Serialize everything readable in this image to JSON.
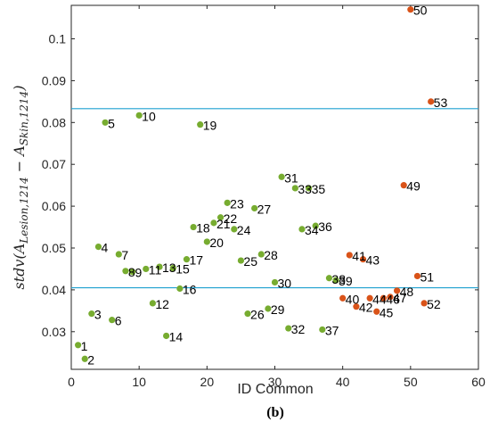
{
  "chart_data": {
    "type": "scatter",
    "title": "",
    "xlabel": "ID Common",
    "ylabel": {
      "prefix": "stdv(",
      "a1": "A",
      "s1": "Lesion,1214",
      "minus": " − ",
      "a2": "A",
      "s2": "Skin,1214",
      "suffix": ")"
    },
    "caption": "(b)",
    "xlim": [
      0,
      60
    ],
    "ylim": [
      0.021,
      0.108
    ],
    "xticks": [
      "0",
      "10",
      "20",
      "30",
      "40",
      "50",
      "60"
    ],
    "yticks": [
      "0.03",
      "0.04",
      "0.05",
      "0.06",
      "0.07",
      "0.08",
      "0.09",
      "0.1"
    ],
    "xtick_values": [
      0,
      10,
      20,
      30,
      40,
      50,
      60
    ],
    "ytick_values": [
      0.03,
      0.04,
      0.05,
      0.06,
      0.07,
      0.08,
      0.09,
      0.1
    ],
    "grid": false,
    "reference_lines": [
      {
        "y": 0.0833,
        "color": "#1fa0d0"
      },
      {
        "y": 0.0405,
        "color": "#1fa0d0"
      }
    ],
    "colors": {
      "green": "#77ac30",
      "orange": "#d95319"
    },
    "points": [
      {
        "label": "1",
        "x": 1,
        "y": 0.0268,
        "color": "green"
      },
      {
        "label": "2",
        "x": 2,
        "y": 0.0235,
        "color": "green"
      },
      {
        "label": "3",
        "x": 3,
        "y": 0.0343,
        "color": "green"
      },
      {
        "label": "4",
        "x": 4,
        "y": 0.0503,
        "color": "green"
      },
      {
        "label": "5",
        "x": 5,
        "y": 0.08,
        "color": "green"
      },
      {
        "label": "6",
        "x": 6,
        "y": 0.0328,
        "color": "green"
      },
      {
        "label": "7",
        "x": 7,
        "y": 0.0485,
        "color": "green"
      },
      {
        "label": "8",
        "x": 8,
        "y": 0.0445,
        "color": "green"
      },
      {
        "label": "9",
        "x": 9,
        "y": 0.0443,
        "color": "green"
      },
      {
        "label": "10",
        "x": 10,
        "y": 0.0817,
        "color": "green"
      },
      {
        "label": "11",
        "x": 11,
        "y": 0.045,
        "color": "green"
      },
      {
        "label": "12",
        "x": 12,
        "y": 0.0368,
        "color": "green"
      },
      {
        "label": "13",
        "x": 13,
        "y": 0.0455,
        "color": "green"
      },
      {
        "label": "14",
        "x": 14,
        "y": 0.029,
        "color": "green"
      },
      {
        "label": "15",
        "x": 15,
        "y": 0.0452,
        "color": "green"
      },
      {
        "label": "16",
        "x": 16,
        "y": 0.0403,
        "color": "green"
      },
      {
        "label": "17",
        "x": 17,
        "y": 0.0473,
        "color": "green"
      },
      {
        "label": "18",
        "x": 18,
        "y": 0.055,
        "color": "green"
      },
      {
        "label": "19",
        "x": 19,
        "y": 0.0795,
        "color": "green"
      },
      {
        "label": "20",
        "x": 20,
        "y": 0.0515,
        "color": "green"
      },
      {
        "label": "21",
        "x": 21,
        "y": 0.056,
        "color": "green"
      },
      {
        "label": "22",
        "x": 22,
        "y": 0.0573,
        "color": "green"
      },
      {
        "label": "23",
        "x": 23,
        "y": 0.0608,
        "color": "green"
      },
      {
        "label": "24",
        "x": 24,
        "y": 0.0545,
        "color": "green"
      },
      {
        "label": "25",
        "x": 25,
        "y": 0.047,
        "color": "green"
      },
      {
        "label": "26",
        "x": 26,
        "y": 0.0343,
        "color": "green"
      },
      {
        "label": "27",
        "x": 27,
        "y": 0.0595,
        "color": "green"
      },
      {
        "label": "28",
        "x": 28,
        "y": 0.0485,
        "color": "green"
      },
      {
        "label": "29",
        "x": 29,
        "y": 0.0355,
        "color": "green"
      },
      {
        "label": "30",
        "x": 30,
        "y": 0.0418,
        "color": "green"
      },
      {
        "label": "31",
        "x": 31,
        "y": 0.067,
        "color": "green"
      },
      {
        "label": "32",
        "x": 32,
        "y": 0.0308,
        "color": "green"
      },
      {
        "label": "33",
        "x": 33,
        "y": 0.0643,
        "color": "green"
      },
      {
        "label": "34",
        "x": 34,
        "y": 0.0545,
        "color": "green"
      },
      {
        "label": "35",
        "x": 35,
        "y": 0.0643,
        "color": "green"
      },
      {
        "label": "36",
        "x": 36,
        "y": 0.0553,
        "color": "green"
      },
      {
        "label": "37",
        "x": 37,
        "y": 0.0305,
        "color": "green"
      },
      {
        "label": "38",
        "x": 38,
        "y": 0.0428,
        "color": "green"
      },
      {
        "label": "39",
        "x": 39,
        "y": 0.0423,
        "color": "green"
      },
      {
        "label": "40",
        "x": 40,
        "y": 0.038,
        "color": "orange"
      },
      {
        "label": "41",
        "x": 41,
        "y": 0.0483,
        "color": "orange"
      },
      {
        "label": "42",
        "x": 42,
        "y": 0.036,
        "color": "orange"
      },
      {
        "label": "43",
        "x": 43,
        "y": 0.0473,
        "color": "orange"
      },
      {
        "label": "44",
        "x": 44,
        "y": 0.038,
        "color": "orange"
      },
      {
        "label": "45",
        "x": 45,
        "y": 0.0348,
        "color": "orange"
      },
      {
        "label": "46",
        "x": 46,
        "y": 0.038,
        "color": "orange"
      },
      {
        "label": "47",
        "x": 47,
        "y": 0.0383,
        "color": "orange"
      },
      {
        "label": "48",
        "x": 48,
        "y": 0.0398,
        "color": "orange"
      },
      {
        "label": "49",
        "x": 49,
        "y": 0.065,
        "color": "orange"
      },
      {
        "label": "50",
        "x": 50,
        "y": 0.107,
        "color": "orange"
      },
      {
        "label": "51",
        "x": 51,
        "y": 0.0433,
        "color": "orange"
      },
      {
        "label": "52",
        "x": 52,
        "y": 0.0368,
        "color": "orange"
      },
      {
        "label": "53",
        "x": 53,
        "y": 0.085,
        "color": "orange"
      }
    ]
  }
}
